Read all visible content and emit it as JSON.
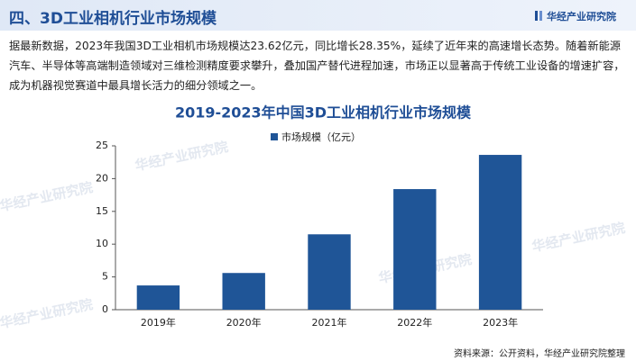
{
  "header": {
    "title": "四、3D工业相机行业市场规模",
    "logo": "华经产业研究院"
  },
  "paragraph": "据最新数据，2023年我国3D工业相机市场规模达23.62亿元，同比增长28.35%，延续了近年来的高速增长态势。随着新能源汽车、半导体等高端制造领域对三维检测精度要求攀升，叠加国产替代进程加速，市场正以显著高于传统工业设备的增速扩容，成为机器视觉赛道中最具增长活力的细分领域之一。",
  "chart_data": {
    "type": "bar",
    "title": "2019-2023年中国3D工业相机行业市场规模",
    "categories": [
      "2019年",
      "2020年",
      "2021年",
      "2022年",
      "2023年"
    ],
    "series": [
      {
        "name": "市场规模（亿元）",
        "color": "#1f5597",
        "values": [
          3.7,
          5.6,
          11.5,
          18.4,
          23.62
        ]
      }
    ],
    "ylim": [
      0,
      25
    ],
    "yticks": [
      0,
      5,
      10,
      15,
      20,
      25
    ],
    "grid": false
  },
  "source": "资料来源：公开资料，华经产业研究院整理"
}
